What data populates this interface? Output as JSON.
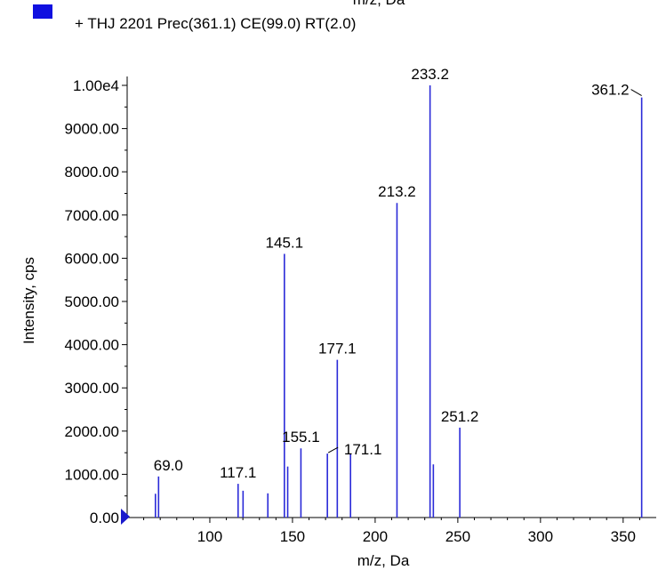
{
  "top_cut_label": "m/z, Da",
  "legend": {
    "text": "+ THJ 2201 Prec(361.1) CE(99.0) RT(2.0)",
    "swatch_color": "#1010e0"
  },
  "colors": {
    "series": "#2a2ad8",
    "axis": "#000000",
    "marker": "#1a1acc"
  },
  "chart_data": {
    "type": "bar",
    "xlabel": "m/z, Da",
    "ylabel": "Intensity, cps",
    "xlim": [
      50,
      370
    ],
    "ylim": [
      0,
      10000
    ],
    "x_ticks": [
      {
        "value": 100,
        "label": "100"
      },
      {
        "value": 150,
        "label": "150"
      },
      {
        "value": 200,
        "label": "200"
      },
      {
        "value": 250,
        "label": "250"
      },
      {
        "value": 300,
        "label": "300"
      },
      {
        "value": 350,
        "label": "350"
      }
    ],
    "y_ticks": [
      {
        "value": 0,
        "label": "0.00"
      },
      {
        "value": 1000,
        "label": "1000.00"
      },
      {
        "value": 2000,
        "label": "2000.00"
      },
      {
        "value": 3000,
        "label": "3000.00"
      },
      {
        "value": 4000,
        "label": "4000.00"
      },
      {
        "value": 5000,
        "label": "5000.00"
      },
      {
        "value": 6000,
        "label": "6000.00"
      },
      {
        "value": 7000,
        "label": "7000.00"
      },
      {
        "value": 8000,
        "label": "8000.00"
      },
      {
        "value": 9000,
        "label": "9000.00"
      },
      {
        "value": 10000,
        "label": "1.00e4"
      }
    ],
    "peaks": [
      {
        "mz": 67.1,
        "intensity": 550
      },
      {
        "mz": 69.0,
        "intensity": 950,
        "label": "69.0"
      },
      {
        "mz": 117.1,
        "intensity": 780,
        "label": "117.1"
      },
      {
        "mz": 120.1,
        "intensity": 620
      },
      {
        "mz": 135.1,
        "intensity": 560
      },
      {
        "mz": 145.1,
        "intensity": 6100,
        "label": "145.1"
      },
      {
        "mz": 147.1,
        "intensity": 1180
      },
      {
        "mz": 155.1,
        "intensity": 1600,
        "label": "155.1"
      },
      {
        "mz": 171.1,
        "intensity": 1480,
        "label": "171.1"
      },
      {
        "mz": 177.1,
        "intensity": 3650,
        "label": "177.1"
      },
      {
        "mz": 185.1,
        "intensity": 1460
      },
      {
        "mz": 213.2,
        "intensity": 7280,
        "label": "213.2"
      },
      {
        "mz": 233.2,
        "intensity": 10000,
        "label": "233.2"
      },
      {
        "mz": 235.2,
        "intensity": 1230
      },
      {
        "mz": 251.2,
        "intensity": 2080,
        "label": "251.2"
      },
      {
        "mz": 361.2,
        "intensity": 9720,
        "label": "361.2"
      }
    ]
  }
}
